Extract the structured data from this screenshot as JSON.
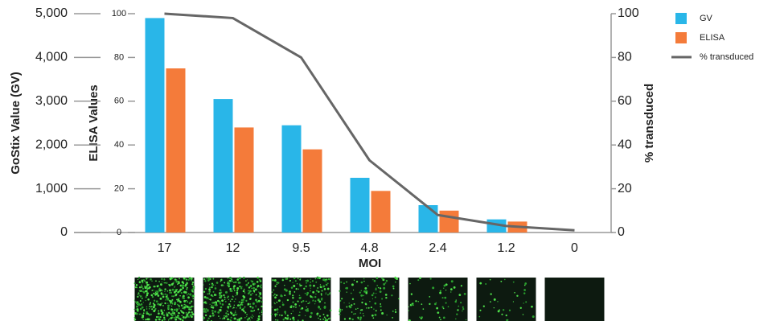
{
  "chart_data": {
    "type": "bar",
    "x_label": "MOI",
    "y_label": "GoStix Value (GV)",
    "y3_label": "ELISA Values",
    "y2_label": "% transduced",
    "categories": [
      "17",
      "12",
      "9.5",
      "4.8",
      "2.4",
      "1.2",
      "0"
    ],
    "series": [
      {
        "name": "GV",
        "color": "#29b6e8",
        "type": "bar",
        "axis": "y",
        "values": [
          4900,
          3050,
          2450,
          1250,
          625,
          300,
          0
        ]
      },
      {
        "name": "ELISA",
        "color": "#f47b3a",
        "type": "bar",
        "axis": "y3",
        "values": [
          75,
          48,
          38,
          19,
          10,
          5,
          0
        ]
      },
      {
        "name": "% transduced",
        "color": "#666666",
        "type": "line",
        "axis": "y2",
        "values": [
          100,
          98,
          80,
          33,
          8,
          3,
          1
        ]
      }
    ],
    "ylim": [
      0,
      5000
    ],
    "yticks": [
      {
        "value": 0,
        "label": "0"
      },
      {
        "value": 1000,
        "label": "1,000"
      },
      {
        "value": 2000,
        "label": "2,000"
      },
      {
        "value": 3000,
        "label": "3,000"
      },
      {
        "value": 4000,
        "label": "4,000"
      },
      {
        "value": 5000,
        "label": "5,000"
      }
    ],
    "y3lim": [
      0,
      100
    ],
    "y3ticks": [
      0,
      20,
      40,
      60,
      80,
      100
    ],
    "y2lim": [
      0,
      100
    ],
    "y2ticks": [
      0,
      20,
      40,
      60,
      80,
      100
    ],
    "grid": false,
    "legend": "right"
  }
}
